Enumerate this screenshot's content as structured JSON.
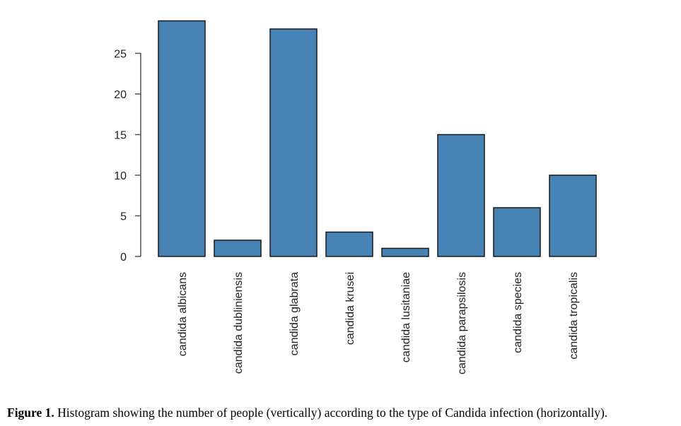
{
  "chart_data": {
    "type": "bar",
    "categories": [
      "candida albicans",
      "candida dubliniensis",
      "candida glabrata",
      "candida krusei",
      "candida lusitaniae",
      "candida parapsilosis",
      "candida species",
      "candida tropicalis"
    ],
    "values": [
      29,
      2,
      28,
      3,
      1,
      15,
      6,
      10
    ],
    "title": "",
    "xlabel": "",
    "ylabel": "",
    "yticks": [
      0,
      5,
      10,
      15,
      20,
      25
    ],
    "ylim": [
      0,
      29
    ],
    "grid": false,
    "bar_color": "#4682b4",
    "bar_edge_color": "#1a1a1a"
  },
  "caption": {
    "label": "Figure 1.",
    "text": " Histogram showing the number of people (vertically) according to the type of Candida infection (horizontally)."
  }
}
